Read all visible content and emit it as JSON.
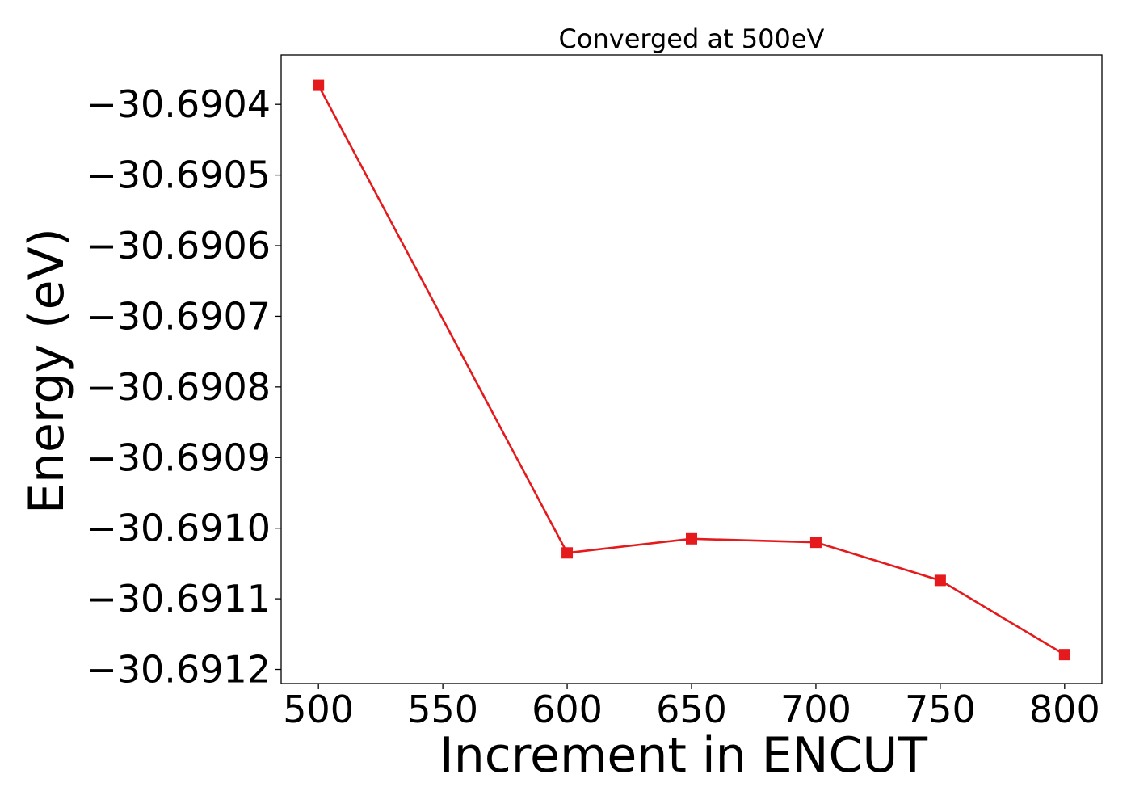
{
  "chart_data": {
    "type": "line",
    "title": "Converged at 500eV",
    "xlabel": "Increment in ENCUT",
    "ylabel": "Energy (eV)",
    "x": [
      500,
      600,
      650,
      700,
      750,
      800
    ],
    "series": [
      {
        "values": [
          -30.690373,
          -30.691035,
          -30.691015,
          -30.69102,
          -30.691074,
          -30.691179
        ],
        "color": "#e41a1c",
        "marker": "square"
      }
    ],
    "xlim": [
      485,
      815
    ],
    "ylim": [
      -30.69122,
      -30.69033
    ],
    "xticks": [
      500,
      550,
      600,
      650,
      700,
      750,
      800
    ],
    "xtick_labels": [
      "500",
      "550",
      "600",
      "650",
      "700",
      "750",
      "800"
    ],
    "yticks": [
      -30.6904,
      -30.6905,
      -30.6906,
      -30.6907,
      -30.6908,
      -30.6909,
      -30.691,
      -30.6911,
      -30.6912
    ],
    "ytick_labels": [
      "−30.6904",
      "−30.6905",
      "−30.6906",
      "−30.6907",
      "−30.6908",
      "−30.6909",
      "−30.6910",
      "−30.6911",
      "−30.6912"
    ],
    "grid": false,
    "legend": false
  }
}
